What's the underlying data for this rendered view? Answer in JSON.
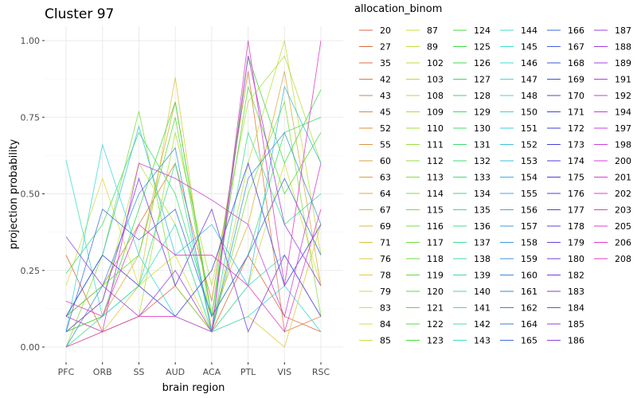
{
  "chart_data": {
    "type": "line",
    "title": "Cluster 97",
    "xlabel": "brain region",
    "ylabel": "projection probability",
    "categories": [
      "PFC",
      "ORB",
      "SS",
      "AUD",
      "ACA",
      "PTL",
      "VIS",
      "RSC"
    ],
    "ylim": [
      0,
      1
    ],
    "yticks": [
      0.0,
      0.25,
      0.5,
      0.75,
      1.0
    ],
    "ytick_labels": [
      "0.00",
      "0.25",
      "0.50",
      "0.75",
      "1.00"
    ],
    "grid": true,
    "legend": {
      "title": "allocation_binom",
      "position": "right",
      "columns": [
        [
          "20",
          "27",
          "35",
          "42",
          "43",
          "45",
          "52",
          "55",
          "60",
          "63",
          "64",
          "67",
          "69",
          "71",
          "76",
          "78",
          "79",
          "83",
          "84",
          "85"
        ],
        [
          "87",
          "89",
          "102",
          "103",
          "108",
          "109",
          "110",
          "111",
          "112",
          "113",
          "114",
          "115",
          "116",
          "117",
          "118",
          "119",
          "120",
          "121",
          "122",
          "123"
        ],
        [
          "124",
          "125",
          "126",
          "127",
          "128",
          "129",
          "130",
          "131",
          "132",
          "133",
          "134",
          "135",
          "136",
          "137",
          "138",
          "139",
          "140",
          "141",
          "142",
          "143"
        ],
        [
          "144",
          "145",
          "146",
          "147",
          "148",
          "150",
          "151",
          "152",
          "153",
          "154",
          "155",
          "156",
          "157",
          "158",
          "159",
          "160",
          "161",
          "162",
          "164",
          "165"
        ],
        [
          "166",
          "167",
          "168",
          "169",
          "170",
          "171",
          "172",
          "173",
          "174",
          "175",
          "176",
          "177",
          "178",
          "179",
          "180",
          "182",
          "183",
          "184",
          "185",
          "186"
        ],
        [
          "187",
          "188",
          "189",
          "191",
          "192",
          "194",
          "197",
          "198",
          "200",
          "201",
          "202",
          "203",
          "205",
          "206",
          "208"
        ]
      ],
      "column_colors": [
        "#F07A5C",
        "#A3A500",
        "#00BF7D",
        "#00B0C8",
        "#8C8CF0",
        "#E76BF3"
      ]
    },
    "series": [
      {
        "name": "20",
        "values": [
          0.3,
          0.05,
          0.1,
          0.2,
          0.05,
          0.3,
          0.1,
          0.05
        ]
      },
      {
        "name": "42",
        "values": [
          0.1,
          0.2,
          0.4,
          0.6,
          0.15,
          0.9,
          0.05,
          0.1
        ]
      },
      {
        "name": "64",
        "values": [
          0.05,
          0.1,
          0.3,
          0.8,
          0.1,
          0.4,
          0.9,
          0.2
        ]
      },
      {
        "name": "76",
        "values": [
          0.0,
          0.05,
          0.2,
          0.88,
          0.05,
          0.1,
          0.0,
          0.4
        ]
      },
      {
        "name": "84",
        "values": [
          0.2,
          0.55,
          0.2,
          0.3,
          0.05,
          0.2,
          0.6,
          0.2
        ]
      },
      {
        "name": "89",
        "values": [
          0.05,
          0.15,
          0.6,
          0.4,
          0.05,
          0.6,
          1.0,
          0.3
        ]
      },
      {
        "name": "103",
        "values": [
          0.1,
          0.05,
          0.1,
          0.7,
          0.2,
          0.8,
          0.95,
          0.6
        ]
      },
      {
        "name": "114",
        "values": [
          0.0,
          0.3,
          0.77,
          0.2,
          0.05,
          0.5,
          0.8,
          0.1
        ]
      },
      {
        "name": "120",
        "values": [
          0.1,
          0.2,
          0.3,
          0.75,
          0.1,
          0.85,
          0.5,
          0.7
        ]
      },
      {
        "name": "125",
        "values": [
          0.05,
          0.1,
          0.45,
          0.8,
          0.1,
          0.95,
          0.6,
          0.84
        ]
      },
      {
        "name": "131",
        "values": [
          0.24,
          0.4,
          0.7,
          0.5,
          0.1,
          0.3,
          0.7,
          0.75
        ]
      },
      {
        "name": "137",
        "values": [
          0.0,
          0.1,
          0.2,
          0.6,
          0.05,
          0.7,
          0.4,
          0.5
        ]
      },
      {
        "name": "143",
        "values": [
          0.61,
          0.1,
          0.2,
          0.4,
          0.05,
          0.2,
          0.3,
          0.1
        ]
      },
      {
        "name": "148",
        "values": [
          0.05,
          0.66,
          0.3,
          0.1,
          0.05,
          0.1,
          0.2,
          0.05
        ]
      },
      {
        "name": "153",
        "values": [
          0.1,
          0.3,
          0.72,
          0.3,
          0.4,
          0.2,
          0.85,
          0.6
        ]
      },
      {
        "name": "159",
        "values": [
          0.0,
          0.2,
          0.5,
          0.65,
          0.05,
          0.55,
          0.7,
          0.4
        ]
      },
      {
        "name": "165",
        "values": [
          0.05,
          0.45,
          0.35,
          0.45,
          0.1,
          0.3,
          0.55,
          0.3
        ]
      },
      {
        "name": "172",
        "values": [
          0.1,
          0.3,
          0.2,
          0.1,
          0.25,
          0.6,
          0.2,
          0.4
        ]
      },
      {
        "name": "180",
        "values": [
          0.05,
          0.15,
          0.55,
          0.2,
          0.45,
          0.05,
          0.3,
          0.1
        ]
      },
      {
        "name": "187",
        "values": [
          0.36,
          0.2,
          0.1,
          0.25,
          0.05,
          0.95,
          0.4,
          0.2
        ]
      },
      {
        "name": "197",
        "values": [
          0.1,
          0.05,
          0.6,
          0.55,
          0.48,
          0.4,
          0.1,
          0.6
        ]
      },
      {
        "name": "206",
        "values": [
          0.0,
          0.05,
          0.1,
          0.1,
          0.05,
          1.0,
          0.2,
          1.0
        ]
      },
      {
        "name": "208",
        "values": [
          0.15,
          0.1,
          0.4,
          0.3,
          0.3,
          0.2,
          0.05,
          0.45
        ]
      }
    ]
  }
}
